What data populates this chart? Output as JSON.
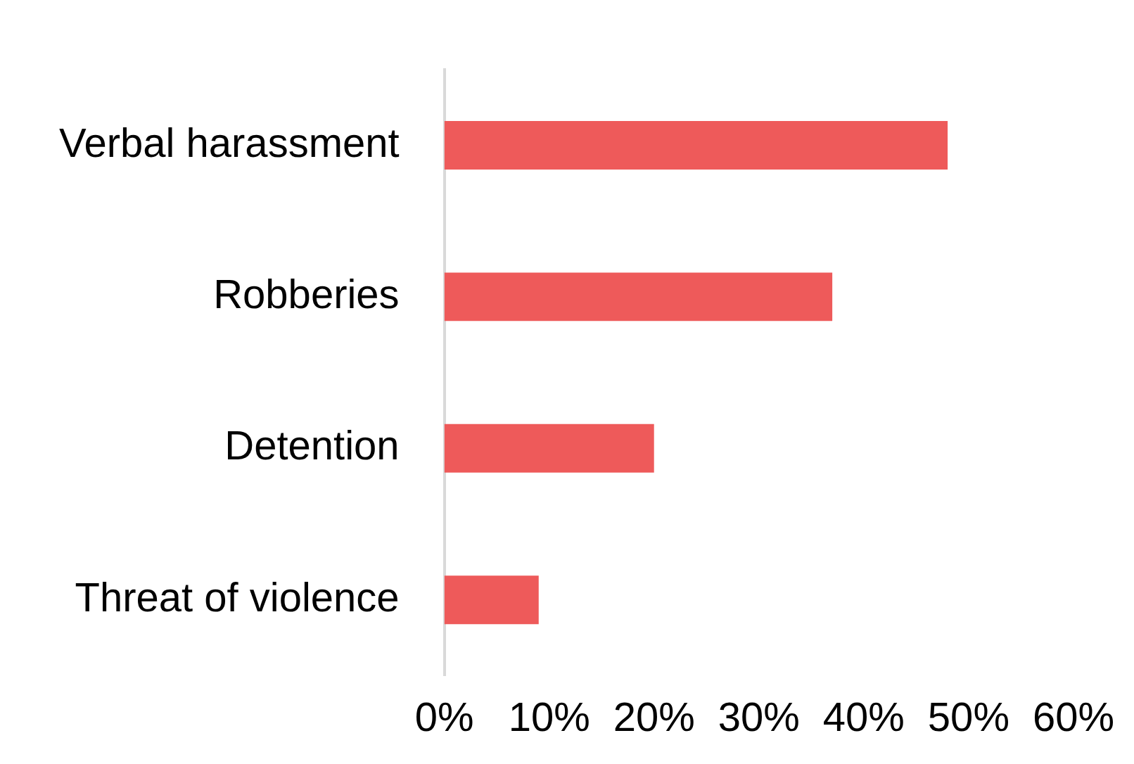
{
  "chart_data": {
    "type": "bar",
    "orientation": "horizontal",
    "categories": [
      "Verbal harassment",
      "Robberies",
      "Detention",
      "Threat of violence"
    ],
    "values": [
      48,
      37,
      20,
      9
    ],
    "color": "#ee5a5a",
    "xlim": [
      0,
      60
    ],
    "xticks": [
      {
        "value": 0,
        "label": "0%"
      },
      {
        "value": 10,
        "label": "10%"
      },
      {
        "value": 20,
        "label": "20%"
      },
      {
        "value": 30,
        "label": "30%"
      },
      {
        "value": 40,
        "label": "40%"
      },
      {
        "value": 50,
        "label": "50%"
      },
      {
        "value": 60,
        "label": "60%"
      }
    ],
    "grid": false,
    "legend": false
  }
}
